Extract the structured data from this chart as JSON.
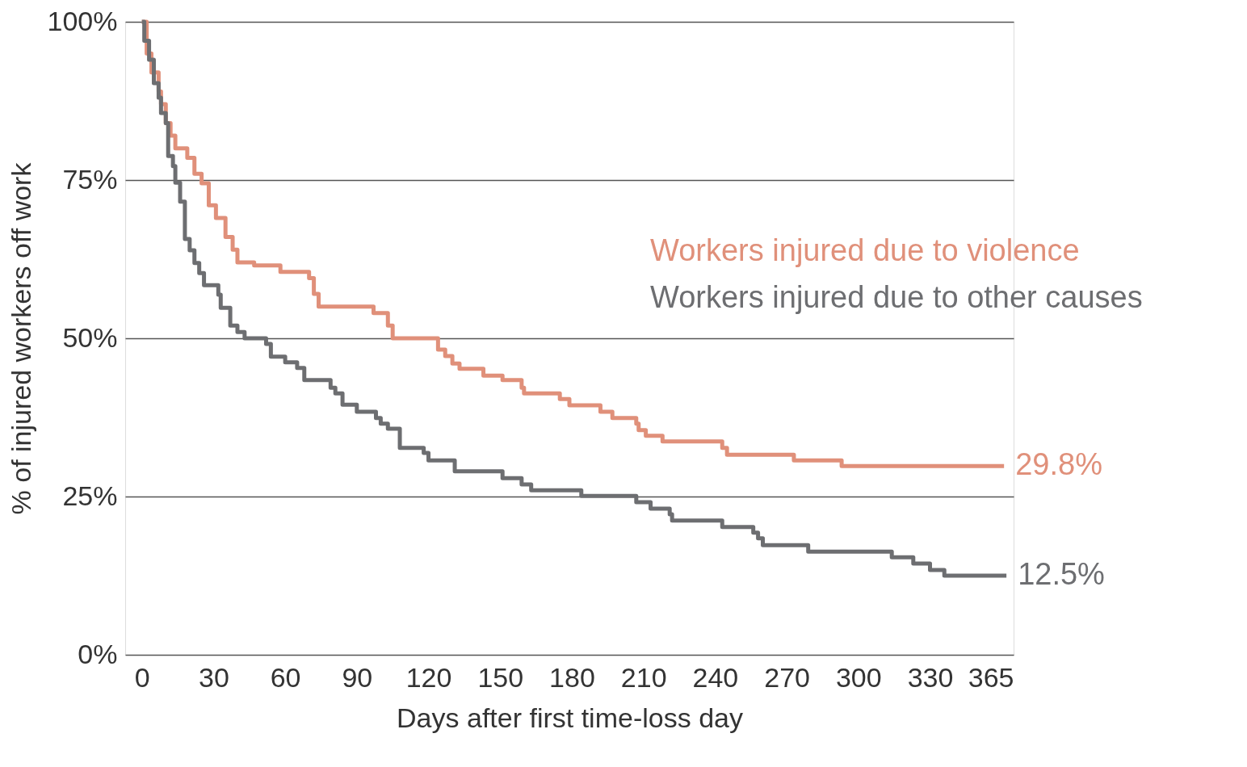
{
  "chart_data": {
    "type": "step",
    "xlabel": "Days after first time-loss day",
    "ylabel": "% of injured workers off work",
    "xlim": [
      -7,
      365
    ],
    "xticks": [
      0,
      30,
      60,
      90,
      120,
      150,
      180,
      210,
      240,
      270,
      300,
      330,
      365
    ],
    "ylim": [
      0,
      100
    ],
    "yticks": [
      {
        "value": 0,
        "label": "0%"
      },
      {
        "value": 25,
        "label": "25%"
      },
      {
        "value": 50,
        "label": "50%"
      },
      {
        "value": 75,
        "label": "75%"
      },
      {
        "value": 100,
        "label": "100%"
      }
    ],
    "grid": "y",
    "legend": "right",
    "line_style": "solid",
    "marker": "none",
    "series": [
      {
        "name": "Workers injured due to violence",
        "color": "#e0907a",
        "x": [
          0,
          2,
          4,
          7,
          8,
          10,
          12,
          14,
          19,
          22,
          25,
          28,
          31,
          35,
          38,
          40,
          47,
          58,
          70,
          72,
          74,
          97,
          103,
          105,
          124,
          127,
          130,
          133,
          143,
          151,
          159,
          160,
          175,
          179,
          192,
          197,
          207,
          208,
          211,
          218,
          243,
          245,
          273,
          293,
          361
        ],
        "values": [
          100,
          95,
          92,
          89,
          87,
          84,
          82,
          80,
          78.5,
          76,
          74.5,
          71,
          69,
          66,
          64,
          62,
          61.5,
          60.5,
          59.5,
          57,
          55,
          54,
          52,
          50,
          48.2,
          47.2,
          46,
          45.2,
          44.1,
          43.4,
          42.2,
          41.3,
          40.4,
          39.4,
          38.4,
          37.4,
          36.5,
          35.5,
          34.6,
          33.7,
          32.7,
          31.6,
          30.7,
          29.8,
          29.8
        ]
      },
      {
        "name": "Workers injured due to other causes",
        "color": "#6d6e71",
        "x": [
          0,
          1,
          3,
          5,
          7,
          8,
          10,
          11,
          13,
          14,
          16,
          18,
          20,
          22,
          24,
          26,
          32,
          33,
          37,
          40,
          43,
          52,
          54,
          60,
          65,
          68,
          79,
          81,
          84,
          90,
          98,
          100,
          103,
          108,
          118,
          120,
          131,
          151,
          159,
          163,
          184,
          207,
          213,
          221,
          222,
          243,
          256,
          258,
          260,
          279,
          314,
          323,
          330,
          336,
          362
        ],
        "values": [
          100,
          97,
          94,
          90.3,
          88,
          85.6,
          84,
          78.8,
          77.2,
          74.6,
          71.6,
          65.7,
          63.9,
          61.9,
          60.3,
          58.4,
          56.9,
          54.8,
          52,
          51,
          50,
          49.1,
          47.1,
          46.2,
          45.3,
          43.4,
          42.2,
          41.3,
          39.5,
          38.4,
          37.4,
          36.5,
          35.7,
          32.7,
          31.9,
          30.7,
          29,
          27.9,
          26.9,
          26,
          25.1,
          24.1,
          23.1,
          22.2,
          21.2,
          20.2,
          19.3,
          18.4,
          17.3,
          16.3,
          15.4,
          14.4,
          13.4,
          12.5,
          12.5
        ]
      }
    ],
    "annotations": [
      {
        "text": "29.8%",
        "x": 361,
        "y": 29.8
      },
      {
        "text": "12.5%",
        "x": 362,
        "y": 12.5
      }
    ]
  }
}
